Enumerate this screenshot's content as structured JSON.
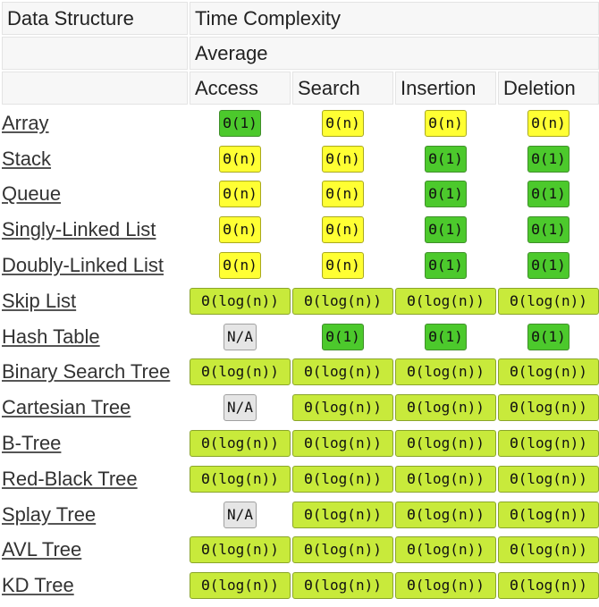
{
  "header": {
    "data_structure": "Data Structure",
    "time_complexity": "Time Complexity",
    "average": "Average",
    "columns": [
      "Access",
      "Search",
      "Insertion",
      "Deletion"
    ]
  },
  "complexity_colors": {
    "good": "#4cc92c",
    "fair": "#ffff33",
    "ok": "#c8ea3b",
    "na": "#e5e5e5"
  },
  "rows": [
    {
      "name": "Array",
      "cells": [
        {
          "text": "Θ(1)",
          "rating": "good"
        },
        {
          "text": "Θ(n)",
          "rating": "fair"
        },
        {
          "text": "Θ(n)",
          "rating": "fair"
        },
        {
          "text": "Θ(n)",
          "rating": "fair"
        }
      ]
    },
    {
      "name": "Stack",
      "cells": [
        {
          "text": "Θ(n)",
          "rating": "fair"
        },
        {
          "text": "Θ(n)",
          "rating": "fair"
        },
        {
          "text": "Θ(1)",
          "rating": "good"
        },
        {
          "text": "Θ(1)",
          "rating": "good"
        }
      ]
    },
    {
      "name": "Queue",
      "cells": [
        {
          "text": "Θ(n)",
          "rating": "fair"
        },
        {
          "text": "Θ(n)",
          "rating": "fair"
        },
        {
          "text": "Θ(1)",
          "rating": "good"
        },
        {
          "text": "Θ(1)",
          "rating": "good"
        }
      ]
    },
    {
      "name": "Singly-Linked List",
      "cells": [
        {
          "text": "Θ(n)",
          "rating": "fair"
        },
        {
          "text": "Θ(n)",
          "rating": "fair"
        },
        {
          "text": "Θ(1)",
          "rating": "good"
        },
        {
          "text": "Θ(1)",
          "rating": "good"
        }
      ]
    },
    {
      "name": "Doubly-Linked List",
      "cells": [
        {
          "text": "Θ(n)",
          "rating": "fair"
        },
        {
          "text": "Θ(n)",
          "rating": "fair"
        },
        {
          "text": "Θ(1)",
          "rating": "good"
        },
        {
          "text": "Θ(1)",
          "rating": "good"
        }
      ]
    },
    {
      "name": "Skip List",
      "cells": [
        {
          "text": "Θ(log(n))",
          "rating": "ok"
        },
        {
          "text": "Θ(log(n))",
          "rating": "ok"
        },
        {
          "text": "Θ(log(n))",
          "rating": "ok"
        },
        {
          "text": "Θ(log(n))",
          "rating": "ok"
        }
      ]
    },
    {
      "name": "Hash Table",
      "cells": [
        {
          "text": "N/A",
          "rating": "na"
        },
        {
          "text": "Θ(1)",
          "rating": "good"
        },
        {
          "text": "Θ(1)",
          "rating": "good"
        },
        {
          "text": "Θ(1)",
          "rating": "good"
        }
      ]
    },
    {
      "name": "Binary Search Tree",
      "cells": [
        {
          "text": "Θ(log(n))",
          "rating": "ok"
        },
        {
          "text": "Θ(log(n))",
          "rating": "ok"
        },
        {
          "text": "Θ(log(n))",
          "rating": "ok"
        },
        {
          "text": "Θ(log(n))",
          "rating": "ok"
        }
      ]
    },
    {
      "name": "Cartesian Tree",
      "cells": [
        {
          "text": "N/A",
          "rating": "na"
        },
        {
          "text": "Θ(log(n))",
          "rating": "ok"
        },
        {
          "text": "Θ(log(n))",
          "rating": "ok"
        },
        {
          "text": "Θ(log(n))",
          "rating": "ok"
        }
      ]
    },
    {
      "name": "B-Tree",
      "cells": [
        {
          "text": "Θ(log(n))",
          "rating": "ok"
        },
        {
          "text": "Θ(log(n))",
          "rating": "ok"
        },
        {
          "text": "Θ(log(n))",
          "rating": "ok"
        },
        {
          "text": "Θ(log(n))",
          "rating": "ok"
        }
      ]
    },
    {
      "name": "Red-Black Tree",
      "cells": [
        {
          "text": "Θ(log(n))",
          "rating": "ok"
        },
        {
          "text": "Θ(log(n))",
          "rating": "ok"
        },
        {
          "text": "Θ(log(n))",
          "rating": "ok"
        },
        {
          "text": "Θ(log(n))",
          "rating": "ok"
        }
      ]
    },
    {
      "name": "Splay Tree",
      "cells": [
        {
          "text": "N/A",
          "rating": "na"
        },
        {
          "text": "Θ(log(n))",
          "rating": "ok"
        },
        {
          "text": "Θ(log(n))",
          "rating": "ok"
        },
        {
          "text": "Θ(log(n))",
          "rating": "ok"
        }
      ]
    },
    {
      "name": "AVL Tree",
      "cells": [
        {
          "text": "Θ(log(n))",
          "rating": "ok"
        },
        {
          "text": "Θ(log(n))",
          "rating": "ok"
        },
        {
          "text": "Θ(log(n))",
          "rating": "ok"
        },
        {
          "text": "Θ(log(n))",
          "rating": "ok"
        }
      ]
    },
    {
      "name": "KD Tree",
      "cells": [
        {
          "text": "Θ(log(n))",
          "rating": "ok"
        },
        {
          "text": "Θ(log(n))",
          "rating": "ok"
        },
        {
          "text": "Θ(log(n))",
          "rating": "ok"
        },
        {
          "text": "Θ(log(n))",
          "rating": "ok"
        }
      ]
    }
  ]
}
